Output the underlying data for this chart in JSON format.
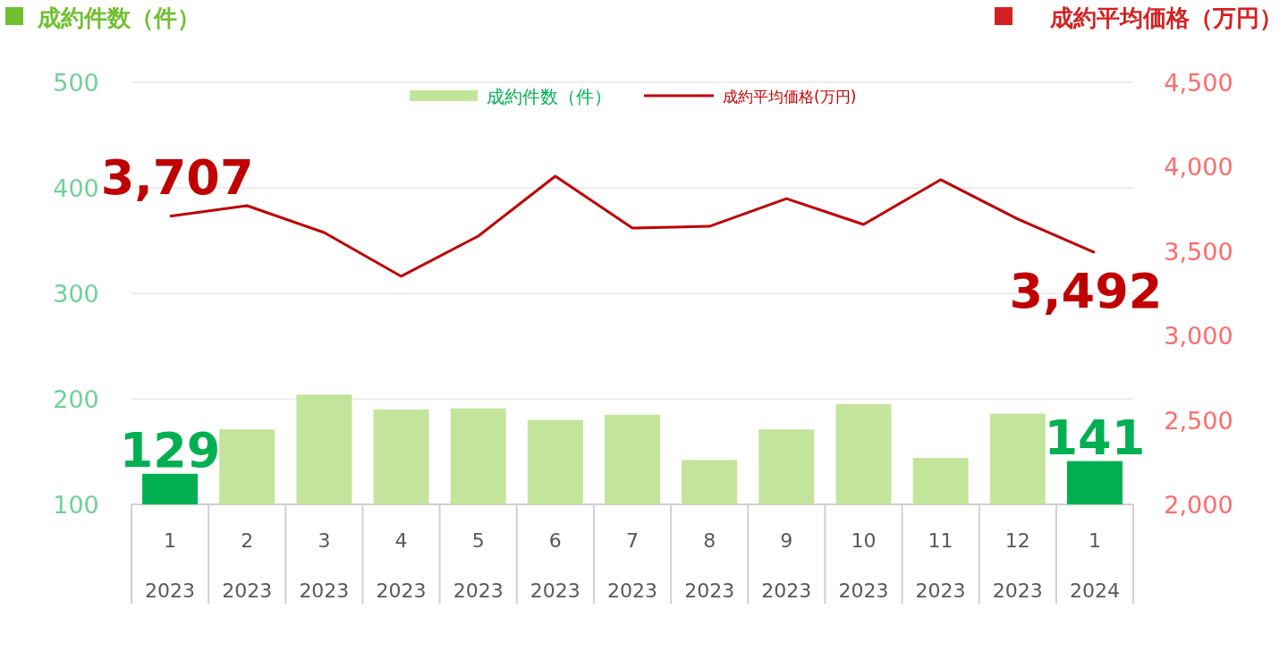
{
  "chart_data": {
    "type": "bar",
    "ylabel": "成約件数（件）",
    "y2label": "成約平均価格（万円）",
    "categories": [
      "1\n2023",
      "2\n2023",
      "3\n2023",
      "4\n2023",
      "5\n2023",
      "6\n2023",
      "7\n2023",
      "8\n2023",
      "9\n2023",
      "10\n2023",
      "11\n2023",
      "12\n2023",
      "1\n2024"
    ],
    "series": [
      {
        "name": "成約件数（件）",
        "color": "#c3e59b",
        "colors": [
          "#00b050",
          "#c3e59b",
          "#c3e59b",
          "#c3e59b",
          "#c3e59b",
          "#c3e59b",
          "#c3e59b",
          "#c3e59b",
          "#c3e59b",
          "#c3e59b",
          "#c3e59b",
          "#c3e59b",
          "#00b050"
        ],
        "values": [
          129,
          171,
          204,
          190,
          191,
          180,
          185,
          142,
          171,
          195,
          144,
          186,
          141
        ],
        "value_labels": [
          "129",
          null,
          null,
          null,
          null,
          null,
          null,
          null,
          null,
          null,
          null,
          null,
          "141"
        ]
      },
      {
        "name": "成約平均価格(万円)",
        "type": "line",
        "color": "#c00000",
        "axis": "y2",
        "values": [
          3707,
          3769,
          3610,
          3351,
          3589,
          3944,
          3637,
          3647,
          3811,
          3658,
          3923,
          3690,
          3492
        ],
        "value_labels": [
          "3,707",
          null,
          null,
          null,
          null,
          null,
          null,
          null,
          null,
          null,
          null,
          null,
          "3,492"
        ]
      }
    ],
    "ylim": [
      100,
      500
    ],
    "yticks": [
      100,
      200,
      300,
      400,
      500
    ],
    "y2lim": [
      2000,
      4500
    ],
    "y2ticks": [
      {
        "value": 2000,
        "label": "2,000"
      },
      {
        "value": 2500,
        "label": "2,500"
      },
      {
        "value": 3000,
        "label": "3,000"
      },
      {
        "value": 3500,
        "label": "3,500"
      },
      {
        "value": 4000,
        "label": "4,000"
      },
      {
        "value": 4500,
        "label": "4,500"
      }
    ],
    "grid": "y",
    "legend": "top"
  }
}
